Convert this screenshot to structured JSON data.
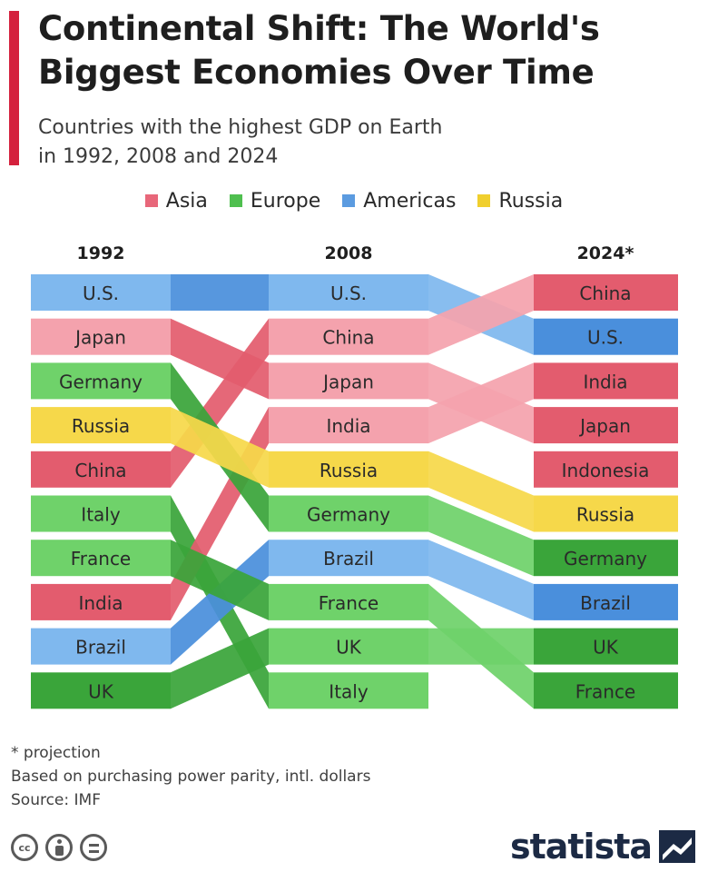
{
  "header": {
    "title": "Continental Shift: The World's Biggest Economies Over Time",
    "subtitle_line1": "Countries with the highest GDP on Earth",
    "subtitle_line2": "in 1992, 2008 and 2024"
  },
  "legend": [
    {
      "label": "Asia",
      "color": "#e8677a"
    },
    {
      "label": "Europe",
      "color": "#4fbf4f"
    },
    {
      "label": "Americas",
      "color": "#5b9be0"
    },
    {
      "label": "Russia",
      "color": "#f0cf2e"
    }
  ],
  "chart_data": {
    "type": "table",
    "columns": [
      "1992",
      "2008",
      "2024*"
    ],
    "region_colors": {
      "Asia": [
        "#f4a2ad",
        "#e35c6e"
      ],
      "Europe": [
        "#6fd26a",
        "#3aa53a"
      ],
      "Americas": [
        "#7fb8ee",
        "#4a8fdc"
      ],
      "Russia": [
        "#f6d84a",
        "#f6d84a"
      ]
    },
    "rankings": [
      {
        "year": "1992",
        "countries": [
          "U.S.",
          "Japan",
          "Germany",
          "Russia",
          "China",
          "Italy",
          "France",
          "India",
          "Brazil",
          "UK"
        ]
      },
      {
        "year": "2008",
        "countries": [
          "U.S.",
          "China",
          "Japan",
          "India",
          "Russia",
          "Germany",
          "Brazil",
          "France",
          "UK",
          "Italy"
        ]
      },
      {
        "year": "2024*",
        "countries": [
          "China",
          "U.S.",
          "India",
          "Japan",
          "Indonesia",
          "Russia",
          "Germany",
          "Brazil",
          "UK",
          "France"
        ]
      }
    ],
    "country_region": {
      "U.S.": "Americas",
      "Japan": "Asia",
      "Germany": "Europe",
      "Russia": "Russia",
      "China": "Asia",
      "Italy": "Europe",
      "France": "Europe",
      "India": "Asia",
      "Brazil": "Americas",
      "UK": "Europe",
      "Indonesia": "Asia"
    }
  },
  "footer": {
    "note_projection": "* projection",
    "note_basis": "Based on purchasing power parity, intl. dollars",
    "source": "Source: IMF"
  },
  "brand": {
    "name": "statista"
  },
  "icons": [
    "cc-icon",
    "by-person-icon",
    "nd-equals-icon",
    "statista-logo-icon"
  ]
}
